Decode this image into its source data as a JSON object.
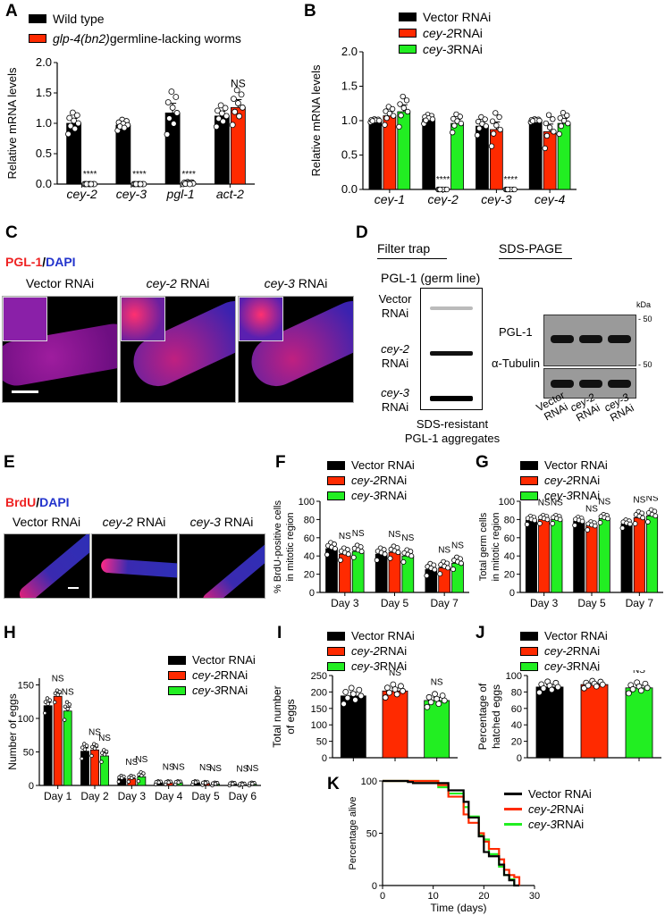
{
  "colors": {
    "black": "#000000",
    "red": "#ff2a00",
    "green": "#22ee22",
    "dapi": "#2233cc",
    "pgl": "#ee2222"
  },
  "panels": {
    "A": {
      "label": "A"
    },
    "B": {
      "label": "B"
    },
    "C": {
      "label": "C"
    },
    "D": {
      "label": "D"
    },
    "E": {
      "label": "E"
    },
    "F": {
      "label": "F"
    },
    "G": {
      "label": "G"
    },
    "H": {
      "label": "H"
    },
    "I": {
      "label": "I"
    },
    "J": {
      "label": "J"
    },
    "K": {
      "label": "K"
    }
  },
  "legendA": [
    {
      "italic": "",
      "text": "Wild type",
      "color": "#000000"
    },
    {
      "italic": "glp-4(bn2)",
      "text": " germline-lacking worms",
      "color": "#ff2a00"
    }
  ],
  "legendRNAi": [
    {
      "italic": "",
      "text": "Vector RNAi",
      "color": "#000000"
    },
    {
      "italic": "cey-2",
      "text": " RNAi",
      "color": "#ff2a00"
    },
    {
      "italic": "cey-3",
      "text": " RNAi",
      "color": "#22ee22"
    }
  ],
  "imagingC": {
    "stain_red": "PGL-1",
    "sep": "/",
    "stain_blue": "DAPI",
    "columns": [
      {
        "italic": "",
        "text": "Vector RNAi"
      },
      {
        "italic": "cey-2",
        "text": " RNAi"
      },
      {
        "italic": "cey-3",
        "text": " RNAi"
      }
    ]
  },
  "imagingE": {
    "stain_red": "BrdU",
    "sep": "/",
    "stain_blue": "DAPI",
    "columns": [
      {
        "italic": "",
        "text": "Vector RNAi"
      },
      {
        "italic": "cey-2",
        "text": " RNAi"
      },
      {
        "italic": "cey-3",
        "text": " RNAi"
      }
    ]
  },
  "blotD": {
    "filter_trap_title": "Filter trap",
    "sds_page_title": "SDS-PAGE",
    "filter_subtitle": "PGL-1 (germ line)",
    "filter_rows": [
      {
        "italic": "",
        "text": "Vector",
        "text2": "RNAi"
      },
      {
        "italic": "cey-2",
        "text": "",
        "text2": "RNAi"
      },
      {
        "italic": "cey-3",
        "text": "",
        "text2": "RNAi"
      }
    ],
    "filter_caption_1": "SDS-resistant",
    "filter_caption_2": "PGL-1 aggregates",
    "kda_label": "kDa",
    "marker_1": "50",
    "marker_2": "50",
    "row_labels": [
      "PGL-1",
      "α-Tubulin"
    ],
    "lane_labels": [
      {
        "l1": "Vector",
        "l2": "RNAi"
      },
      {
        "l1": "cey-2",
        "l2": "RNAi"
      },
      {
        "l1": "cey-3",
        "l2": "RNAi"
      }
    ]
  },
  "chart_data": [
    {
      "id": "A",
      "type": "bar",
      "title": "",
      "categories": [
        "cey-2",
        "cey-3",
        "pgl-1",
        "act-2"
      ],
      "ylabel": "Relative mRNA levels",
      "ylim": [
        0,
        2.0
      ],
      "yticks": [
        "0.0",
        "0.5",
        "1.0",
        "1.5",
        "2.0"
      ],
      "ytick_values": [
        0,
        0.5,
        1.0,
        1.5,
        2.0
      ],
      "series": [
        {
          "name": "Wild type",
          "color": "#000000",
          "values": [
            1.0,
            0.97,
            1.17,
            1.12
          ],
          "err": [
            0.08,
            0.04,
            0.16,
            0.08
          ]
        },
        {
          "name": "glp-4(bn2) germline-lacking worms",
          "color": "#ff2a00",
          "values": [
            0.0,
            0.0,
            0.01,
            1.26
          ],
          "err": [
            0,
            0,
            0.01,
            0.13
          ]
        }
      ],
      "annotations": [
        {
          "category": 0,
          "series": 1,
          "text": "****"
        },
        {
          "category": 1,
          "series": 1,
          "text": "****"
        },
        {
          "category": 2,
          "series": 1,
          "text": "****"
        },
        {
          "category": 3,
          "series": 1,
          "text": "NS"
        }
      ]
    },
    {
      "id": "B",
      "type": "bar",
      "title": "",
      "categories": [
        "cey-1",
        "cey-2",
        "cey-3",
        "cey-4"
      ],
      "ylabel": "Relative mRNA levels",
      "ylim": [
        0,
        2.0
      ],
      "yticks": [
        "0.0",
        "0.5",
        "1.0",
        "1.5",
        "2.0"
      ],
      "ytick_values": [
        0,
        0.5,
        1.0,
        1.5,
        2.0
      ],
      "series": [
        {
          "name": "Vector RNAi",
          "color": "#000000",
          "values": [
            1.0,
            1.02,
            0.92,
            1.0
          ],
          "err": [
            0.01,
            0.03,
            0.06,
            0.01
          ]
        },
        {
          "name": "cey-2 RNAi",
          "color": "#ff2a00",
          "values": [
            1.07,
            0.0,
            0.87,
            0.84
          ],
          "err": [
            0.06,
            0,
            0.11,
            0.11
          ]
        },
        {
          "name": "cey-3 RNAi",
          "color": "#22ee22",
          "values": [
            1.13,
            0.96,
            0.0,
            0.96
          ],
          "err": [
            0.1,
            0.06,
            0,
            0.07
          ]
        }
      ],
      "annotations": [
        {
          "category": 1,
          "series": 1,
          "text": "****"
        },
        {
          "category": 2,
          "series": 2,
          "text": "****"
        }
      ]
    },
    {
      "id": "F",
      "type": "bar",
      "title": "",
      "categories": [
        "Day 3",
        "Day 5",
        "Day 7"
      ],
      "ylabel": "% BrdU-positive cells in mitotic region",
      "ylim": [
        0,
        100
      ],
      "yticks": [
        "0",
        "20",
        "40",
        "60",
        "80",
        "100"
      ],
      "ytick_values": [
        0,
        20,
        40,
        60,
        80,
        100
      ],
      "series": [
        {
          "name": "Vector RNAi",
          "color": "#000000",
          "values": [
            48,
            42,
            25
          ],
          "err": [
            3,
            3,
            3
          ]
        },
        {
          "name": "cey-2 RNAi",
          "color": "#ff2a00",
          "values": [
            42,
            44,
            27
          ],
          "err": [
            3,
            3,
            3
          ]
        },
        {
          "name": "cey-3 RNAi",
          "color": "#22ee22",
          "values": [
            45,
            40,
            32
          ],
          "err": [
            3,
            3,
            3
          ]
        }
      ],
      "annotations": [
        {
          "category": 0,
          "series": 1,
          "text": "NS"
        },
        {
          "category": 0,
          "series": 2,
          "text": "NS"
        },
        {
          "category": 1,
          "series": 1,
          "text": "NS"
        },
        {
          "category": 1,
          "series": 2,
          "text": "NS"
        },
        {
          "category": 2,
          "series": 1,
          "text": "NS"
        },
        {
          "category": 2,
          "series": 2,
          "text": "NS"
        }
      ]
    },
    {
      "id": "G",
      "type": "bar",
      "title": "",
      "categories": [
        "Day 3",
        "Day 5",
        "Day 7"
      ],
      "ylabel": "Total germ cells in mitotic region",
      "ylim": [
        0,
        100
      ],
      "yticks": [
        "0",
        "20",
        "40",
        "60",
        "80",
        "100"
      ],
      "ytick_values": [
        0,
        20,
        40,
        60,
        80,
        100
      ],
      "series": [
        {
          "name": "Vector RNAi",
          "color": "#000000",
          "values": [
            79,
            78,
            75
          ],
          "err": [
            2,
            2,
            2
          ]
        },
        {
          "name": "cey-2 RNAi",
          "color": "#ff2a00",
          "values": [
            80,
            73,
            82
          ],
          "err": [
            2,
            2,
            3
          ]
        },
        {
          "name": "cey-3 RNAi",
          "color": "#22ee22",
          "values": [
            80,
            81,
            84
          ],
          "err": [
            2,
            2,
            3
          ]
        }
      ],
      "annotations": [
        {
          "category": 0,
          "series": 1,
          "text": "NS"
        },
        {
          "category": 0,
          "series": 2,
          "text": "NS"
        },
        {
          "category": 1,
          "series": 1,
          "text": "NS"
        },
        {
          "category": 1,
          "series": 2,
          "text": "NS"
        },
        {
          "category": 2,
          "series": 1,
          "text": "NS"
        },
        {
          "category": 2,
          "series": 2,
          "text": "NS"
        }
      ]
    },
    {
      "id": "H",
      "type": "bar",
      "title": "",
      "categories": [
        "Day 1",
        "Day 2",
        "Day 3",
        "Day 4",
        "Day 5",
        "Day 6"
      ],
      "ylabel": "Number of eggs",
      "ylim": [
        0,
        160
      ],
      "yticks": [
        "0",
        "50",
        "100",
        "150"
      ],
      "ytick_values": [
        0,
        50,
        100,
        150
      ],
      "series": [
        {
          "name": "Vector RNAi",
          "color": "#000000",
          "values": [
            119,
            51,
            10,
            4,
            4,
            2
          ],
          "err": [
            5,
            5,
            2,
            1,
            1,
            1
          ]
        },
        {
          "name": "cey-2 RNAi",
          "color": "#ff2a00",
          "values": [
            133,
            53,
            10,
            4,
            3,
            1
          ],
          "err": [
            4,
            4,
            2,
            1,
            1,
            1
          ]
        },
        {
          "name": "cey-3 RNAi",
          "color": "#22ee22",
          "values": [
            111,
            44,
            13,
            4,
            2,
            2
          ],
          "err": [
            6,
            4,
            3,
            1,
            1,
            1
          ]
        }
      ],
      "annotations": [
        {
          "category": 0,
          "series": 1,
          "text": "NS"
        },
        {
          "category": 0,
          "series": 2,
          "text": "NS"
        },
        {
          "category": 1,
          "series": 1,
          "text": "NS"
        },
        {
          "category": 1,
          "series": 2,
          "text": "NS"
        },
        {
          "category": 2,
          "series": 1,
          "text": "NS"
        },
        {
          "category": 2,
          "series": 2,
          "text": "NS"
        },
        {
          "category": 3,
          "series": 1,
          "text": "NS"
        },
        {
          "category": 3,
          "series": 2,
          "text": "NS"
        },
        {
          "category": 4,
          "series": 1,
          "text": "NS"
        },
        {
          "category": 4,
          "series": 2,
          "text": "NS"
        },
        {
          "category": 5,
          "series": 1,
          "text": "NS"
        },
        {
          "category": 5,
          "series": 2,
          "text": "NS"
        }
      ]
    },
    {
      "id": "I",
      "type": "bar",
      "title": "",
      "categories": [
        "Vector RNAi",
        "cey-2 RNAi",
        "cey-3 RNAi"
      ],
      "ylabel": "Total number of eggs",
      "ylim": [
        0,
        250
      ],
      "yticks": [
        "0",
        "50",
        "100",
        "150",
        "200",
        "250"
      ],
      "ytick_values": [
        0,
        50,
        100,
        150,
        200,
        250
      ],
      "single_series": true,
      "series": [
        {
          "name": "Total eggs",
          "colors": [
            "#000000",
            "#ff2a00",
            "#22ee22"
          ],
          "values": [
            188,
            203,
            174
          ],
          "err": [
            11,
            9,
            9
          ]
        }
      ],
      "annotations": [
        {
          "category": 1,
          "text": "NS"
        },
        {
          "category": 2,
          "text": "NS"
        }
      ]
    },
    {
      "id": "J",
      "type": "bar",
      "title": "",
      "categories": [
        "Vector RNAi",
        "cey-2 RNAi",
        "cey-3 RNAi"
      ],
      "ylabel": "Percentage of hatched eggs",
      "ylim": [
        0,
        100
      ],
      "yticks": [
        "0",
        "20",
        "40",
        "60",
        "80",
        "100"
      ],
      "ytick_values": [
        0,
        20,
        40,
        60,
        80,
        100
      ],
      "single_series": true,
      "series": [
        {
          "name": "Hatched %",
          "colors": [
            "#000000",
            "#ff2a00",
            "#22ee22"
          ],
          "values": [
            86,
            89,
            85
          ],
          "err": [
            3,
            2,
            3
          ]
        }
      ],
      "annotations": [
        {
          "category": 1,
          "text": "NS"
        },
        {
          "category": 2,
          "text": "NS"
        }
      ]
    },
    {
      "id": "K",
      "type": "line",
      "title": "",
      "xlabel": "Time (days)",
      "ylabel": "Percentage alive",
      "xlim": [
        0,
        30
      ],
      "ylim": [
        0,
        100
      ],
      "xticks": [
        "0",
        "10",
        "20",
        "30"
      ],
      "xtick_values": [
        0,
        10,
        20,
        30
      ],
      "yticks": [
        "0",
        "50",
        "100"
      ],
      "ytick_values": [
        0,
        50,
        100
      ],
      "series": [
        {
          "name": "Vector RNAi",
          "color": "#000000",
          "x": [
            0,
            5,
            6,
            11,
            13,
            16,
            17,
            18,
            19,
            20,
            21,
            23,
            24,
            25,
            26,
            27
          ],
          "y": [
            100,
            99,
            98,
            98,
            91,
            80,
            65,
            65,
            47,
            32,
            28,
            20,
            10,
            5,
            0,
            0
          ]
        },
        {
          "name": "cey-2 RNAi",
          "color": "#ff2a00",
          "x": [
            0,
            11,
            13,
            16,
            17,
            19,
            20,
            21,
            23,
            24,
            25,
            26,
            27
          ],
          "y": [
            100,
            96,
            85,
            68,
            60,
            50,
            42,
            35,
            25,
            15,
            10,
            8,
            0
          ]
        },
        {
          "name": "cey-3 RNAi",
          "color": "#22ee22",
          "x": [
            0,
            11,
            13,
            16,
            17,
            19,
            20,
            21,
            23,
            24,
            25,
            26
          ],
          "y": [
            100,
            94,
            88,
            75,
            66,
            48,
            44,
            30,
            18,
            10,
            6,
            0
          ]
        }
      ]
    }
  ]
}
